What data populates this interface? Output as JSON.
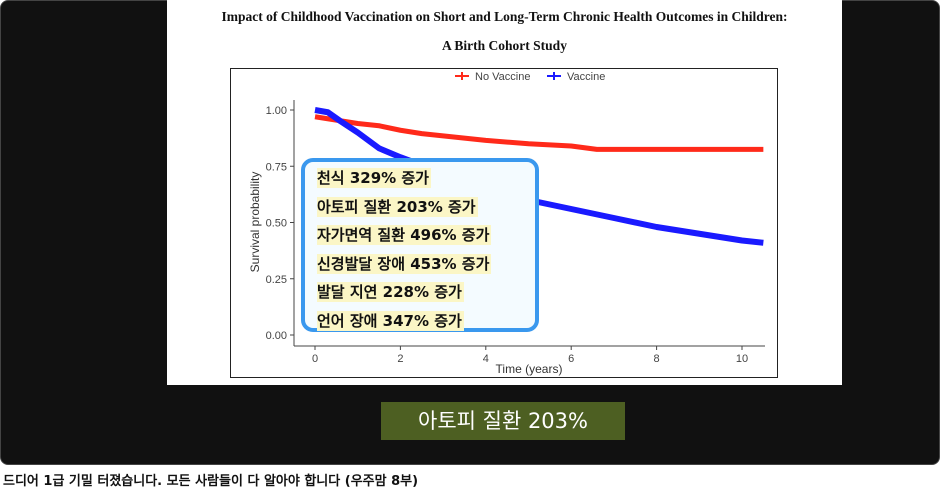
{
  "chart_data": {
    "type": "line",
    "title": "Impact of Childhood Vaccination on Short and Long-Term Chronic Health Outcomes in Children:",
    "subtitle": "A Birth Cohort Study",
    "xlabel": "Time (years)",
    "ylabel": "Survival probability",
    "xlim": [
      0,
      10.5
    ],
    "ylim": [
      0,
      1
    ],
    "xticks": [
      "0",
      "2",
      "4",
      "6",
      "8",
      "10"
    ],
    "yticks": [
      "0.00",
      "0.25",
      "0.50",
      "0.75",
      "1.00"
    ],
    "legend_position": "top",
    "series": [
      {
        "name": "No Vaccine",
        "color": "#ff2a1a",
        "x": [
          0,
          0.5,
          1,
          1.5,
          2,
          2.5,
          3,
          4,
          5,
          6,
          6.6,
          8,
          9,
          10.5
        ],
        "y": [
          0.97,
          0.955,
          0.94,
          0.93,
          0.91,
          0.895,
          0.885,
          0.865,
          0.85,
          0.84,
          0.825,
          0.825,
          0.825,
          0.825
        ]
      },
      {
        "name": "Vaccine",
        "color": "#1a1aff",
        "x": [
          0,
          0.3,
          0.6,
          1,
          1.5,
          2,
          3,
          4,
          5,
          6,
          7,
          8,
          9,
          10,
          10.5
        ],
        "y": [
          1.0,
          0.99,
          0.95,
          0.9,
          0.83,
          0.79,
          0.72,
          0.66,
          0.6,
          0.56,
          0.52,
          0.48,
          0.45,
          0.42,
          0.41
        ]
      }
    ]
  },
  "callout": [
    "천식 329% 증가",
    "아토피 질환 203% 증가",
    "자가면역 질환 496% 증가",
    "신경발달 장애 453% 증가",
    "발달 지연 228% 증가",
    "언어 장애 347% 증가"
  ],
  "banner": "아토피 질환 203%",
  "caption": "드디어 1급 기밀 터졌습니다. 모든 사람들이 다 알아야 합니다 (우주맘 8부)"
}
